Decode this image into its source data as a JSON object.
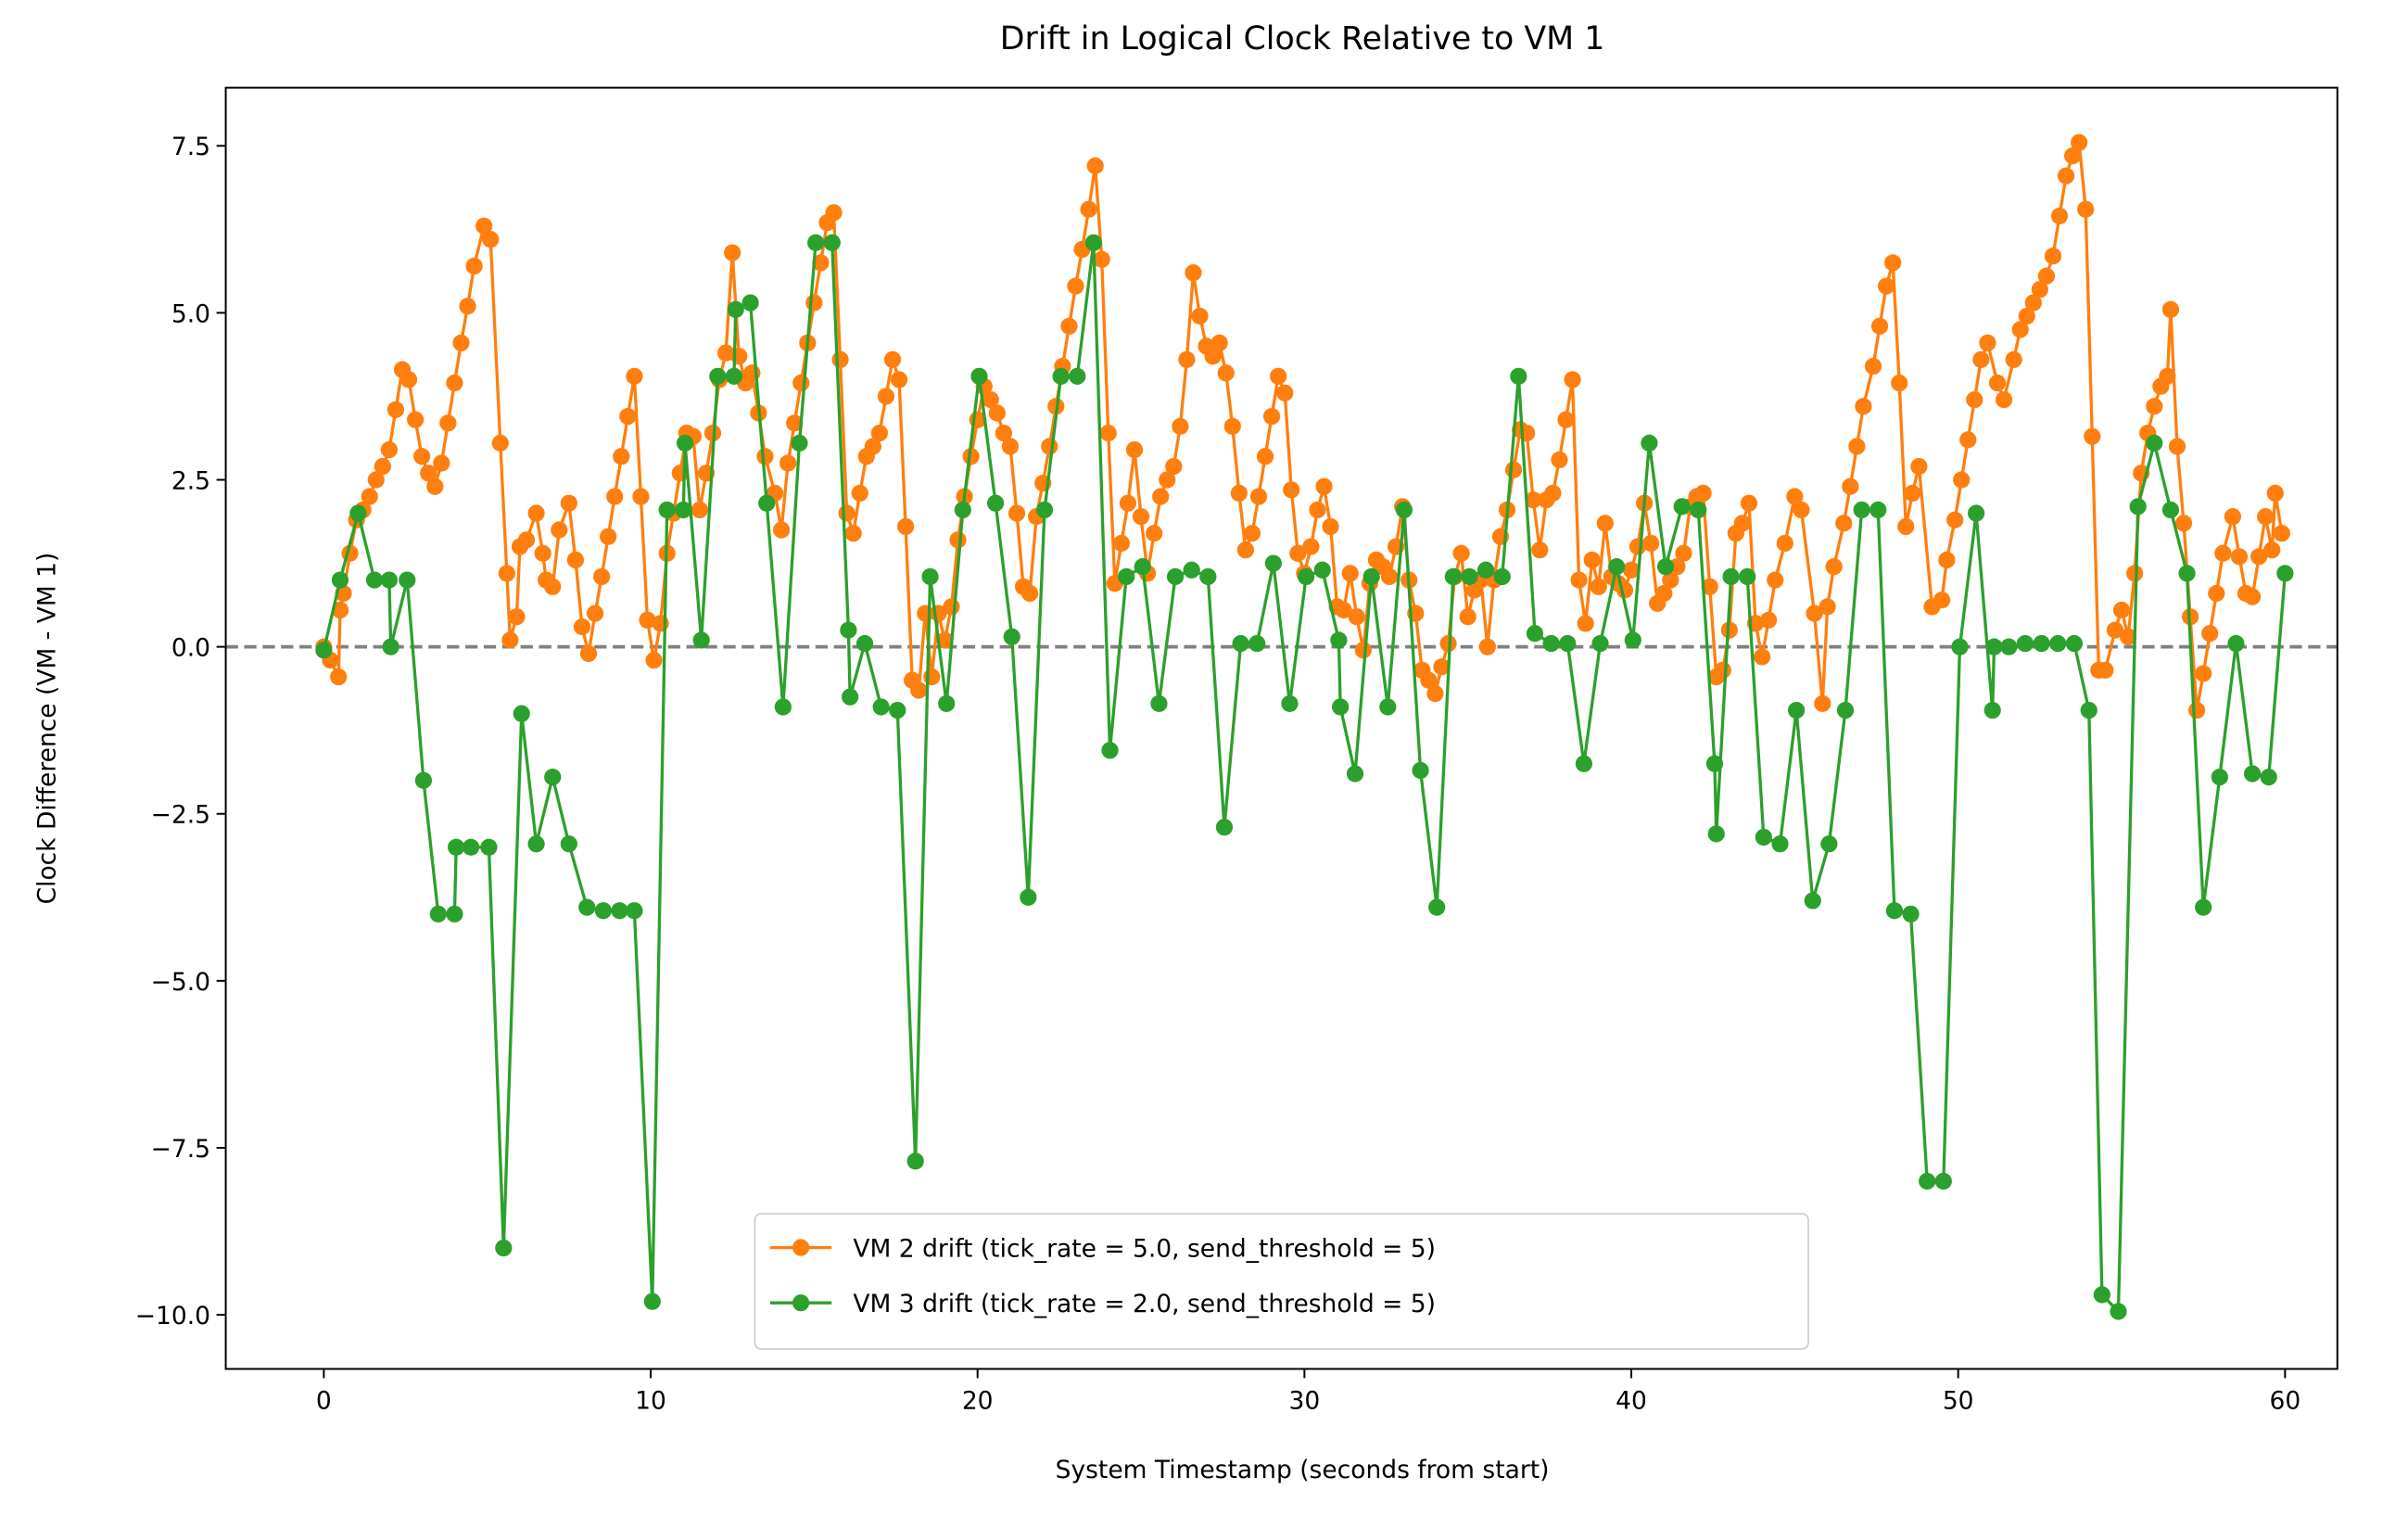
{
  "chart_data": {
    "type": "line",
    "title": "Drift in Logical Clock Relative to VM 1",
    "xlabel": "System Timestamp (seconds from start)",
    "ylabel": "Clock Difference (VM - VM 1)",
    "xlim": [
      -3,
      61.6
    ],
    "ylim": [
      -10.81,
      8.37
    ],
    "xticks": [
      0,
      10,
      20,
      30,
      40,
      50,
      60
    ],
    "yticks": [
      {
        "value": -10,
        "label": "−10.0"
      },
      {
        "value": -7.5,
        "label": "−7.5"
      },
      {
        "value": -5,
        "label": "−5.0"
      },
      {
        "value": -2.5,
        "label": "−2.5"
      },
      {
        "value": 0,
        "label": "0.0"
      },
      2.5,
      {
        "value": 5,
        "label": "5.0"
      },
      7.5
    ],
    "grid": false,
    "legend": "lower center",
    "reference_line": {
      "y": 0,
      "color": "#808080",
      "style": "dashed"
    },
    "series": [
      {
        "name": "VM 2 drift (tick_rate = 5.0, send_threshold = 5)",
        "color": "#ff7f0e",
        "x": [
          0,
          0.2,
          0.45,
          0.5,
          0.6,
          0.8,
          1.0,
          1.2,
          1.4,
          1.6,
          1.8,
          2.0,
          2.2,
          2.4,
          2.6,
          2.8,
          3.0,
          3.2,
          3.4,
          3.6,
          3.8,
          4.0,
          4.2,
          4.4,
          4.6,
          4.9,
          5.1,
          5.4,
          5.6,
          5.7,
          5.9,
          6.0,
          6.2,
          6.5,
          6.7,
          6.8,
          7.0,
          7.2,
          7.5,
          7.7,
          7.9,
          8.1,
          8.3,
          8.5,
          8.7,
          8.9,
          9.1,
          9.3,
          9.5,
          9.7,
          9.9,
          10.1,
          10.3,
          10.5,
          10.7,
          10.9,
          11.1,
          11.3,
          11.5,
          11.7,
          11.9,
          12.1,
          12.3,
          12.5,
          12.7,
          12.9,
          13.1,
          13.3,
          13.5,
          13.8,
          14.0,
          14.2,
          14.4,
          14.6,
          14.8,
          15.0,
          15.2,
          15.4,
          15.6,
          15.8,
          16.0,
          16.2,
          16.4,
          16.6,
          16.8,
          17.0,
          17.2,
          17.4,
          17.6,
          17.8,
          18.0,
          18.2,
          18.4,
          18.6,
          18.8,
          19.0,
          19.2,
          19.4,
          19.6,
          19.8,
          20.0,
          20.2,
          20.4,
          20.6,
          20.8,
          21.0,
          21.2,
          21.4,
          21.6,
          21.8,
          22.0,
          22.2,
          22.4,
          22.6,
          22.8,
          23.0,
          23.2,
          23.4,
          23.6,
          23.8,
          24.0,
          24.2,
          24.4,
          24.6,
          24.8,
          25.0,
          25.2,
          25.4,
          25.6,
          25.8,
          26.0,
          26.2,
          26.4,
          26.6,
          26.8,
          27.0,
          27.2,
          27.4,
          27.6,
          27.8,
          28.0,
          28.2,
          28.4,
          28.6,
          28.8,
          29.0,
          29.2,
          29.4,
          29.6,
          29.8,
          30.0,
          30.2,
          30.4,
          30.6,
          30.8,
          31.0,
          31.2,
          31.4,
          31.6,
          31.8,
          32.0,
          32.2,
          32.4,
          32.6,
          32.8,
          33.0,
          33.2,
          33.4,
          33.6,
          33.8,
          34.0,
          34.2,
          34.4,
          34.6,
          34.8,
          35.0,
          35.2,
          35.4,
          35.6,
          35.8,
          36.0,
          36.2,
          36.4,
          36.6,
          36.8,
          37.0,
          37.2,
          37.4,
          37.6,
          37.8,
          38.0,
          38.2,
          38.4,
          38.6,
          38.8,
          39.0,
          39.2,
          39.4,
          39.6,
          39.8,
          40.0,
          40.2,
          40.4,
          40.6,
          40.8,
          41.0,
          41.2,
          41.4,
          41.6,
          41.8,
          42.0,
          42.2,
          42.4,
          42.6,
          42.8,
          43.0,
          43.2,
          43.4,
          43.6,
          43.8,
          44.0,
          44.2,
          44.4,
          44.7,
          45.0,
          45.2,
          45.6,
          45.85,
          46.0,
          46.2,
          46.5,
          46.7,
          46.9,
          47.1,
          47.4,
          47.6,
          47.8,
          48.0,
          48.2,
          48.4,
          48.6,
          48.8,
          49.2,
          49.5,
          49.65,
          49.9,
          50.1,
          50.3,
          50.5,
          50.7,
          50.9,
          51.2,
          51.4,
          51.7,
          51.9,
          52.1,
          52.3,
          52.5,
          52.7,
          52.9,
          53.1,
          53.3,
          53.5,
          53.7,
          53.9,
          54.1,
          54.3,
          54.5,
          54.8,
          55.0,
          55.2,
          55.4,
          55.6,
          55.8,
          56.0,
          56.2,
          56.4,
          56.5,
          56.7,
          56.9,
          57.1,
          57.3,
          57.5,
          57.7,
          57.9,
          58.1,
          58.4,
          58.6,
          58.8,
          59.0,
          59.2,
          59.4,
          59.6,
          59.7,
          59.9
        ],
        "values": [
          0,
          -0.2,
          -0.45,
          0.55,
          0.8,
          1.4,
          1.9,
          2.05,
          2.25,
          2.5,
          2.7,
          2.95,
          3.55,
          4.15,
          4.0,
          3.4,
          2.85,
          2.6,
          2.4,
          2.75,
          3.35,
          3.95,
          4.55,
          5.1,
          5.7,
          6.3,
          6.1,
          3.05,
          1.1,
          0.1,
          0.45,
          1.5,
          1.6,
          2.0,
          1.4,
          1.0,
          0.9,
          1.75,
          2.15,
          1.3,
          0.3,
          -0.1,
          0.5,
          1.05,
          1.65,
          2.25,
          2.85,
          3.45,
          4.05,
          2.25,
          0.4,
          -0.2,
          0.35,
          1.4,
          2.0,
          2.6,
          3.2,
          3.15,
          2.05,
          2.6,
          3.2,
          4.0,
          4.4,
          5.9,
          4.35,
          3.95,
          4.1,
          3.5,
          2.85,
          2.3,
          1.75,
          2.75,
          3.35,
          3.95,
          4.55,
          5.15,
          5.75,
          6.35,
          6.5,
          4.3,
          2.0,
          1.7,
          2.3,
          2.85,
          3.0,
          3.2,
          3.75,
          4.3,
          4.0,
          1.8,
          -0.5,
          -0.65,
          0.5,
          -0.45,
          0.5,
          0.1,
          0.6,
          1.6,
          2.25,
          2.85,
          3.4,
          3.9,
          3.7,
          3.5,
          3.2,
          3.0,
          2.0,
          0.9,
          0.8,
          1.95,
          2.45,
          3.0,
          3.6,
          4.2,
          4.8,
          5.4,
          5.95,
          6.55,
          7.2,
          5.8,
          3.2,
          0.95,
          1.55,
          2.15,
          2.95,
          1.95,
          1.1,
          1.7,
          2.25,
          2.5,
          2.7,
          3.3,
          4.3,
          5.6,
          4.95,
          4.5,
          4.35,
          4.55,
          4.1,
          3.3,
          2.3,
          1.45,
          1.7,
          2.25,
          2.85,
          3.45,
          4.05,
          3.8,
          2.35,
          1.4,
          1.1,
          1.5,
          2.05,
          2.4,
          1.8,
          0.6,
          0.55,
          1.1,
          0.45,
          -0.05,
          0.95,
          1.3,
          1.2,
          1.05,
          1.5,
          2.1,
          1.0,
          0.5,
          -0.35,
          -0.5,
          -0.7,
          -0.3,
          0.05,
          1.05,
          1.4,
          0.45,
          0.85,
          1.0,
          0.0,
          1.0,
          1.65,
          2.05,
          2.65,
          3.25,
          3.2,
          2.2,
          1.45,
          2.2,
          2.3,
          2.8,
          3.4,
          4.0,
          1.0,
          0.35,
          1.3,
          0.9,
          1.85,
          1.05,
          0.95,
          0.85,
          1.15,
          1.5,
          2.15,
          1.55,
          0.65,
          0.8,
          1.0,
          1.2,
          1.4,
          2.1,
          2.25,
          2.3,
          0.9,
          -0.45,
          -0.35,
          0.25,
          1.7,
          1.85,
          2.15,
          0.35,
          -0.15,
          0.4,
          1.0,
          1.55,
          2.25,
          2.05,
          0.5,
          -0.85,
          0.6,
          1.2,
          1.85,
          2.4,
          3.0,
          3.6,
          4.2,
          4.8,
          5.4,
          5.75,
          3.95,
          1.8,
          2.3,
          2.7,
          0.6,
          0.7,
          1.3,
          1.9,
          2.5,
          3.1,
          3.7,
          4.3,
          4.55,
          3.95,
          3.7,
          4.3,
          4.75,
          4.95,
          5.15,
          5.35,
          5.55,
          5.85,
          6.45,
          7.05,
          7.35,
          7.55,
          6.55,
          3.15,
          -0.35,
          -0.35,
          0.25,
          0.55,
          0.15,
          1.1,
          2.6,
          3.2,
          3.6,
          3.9,
          4.05,
          5.05,
          3.0,
          1.85,
          0.45,
          -0.95,
          -0.4,
          0.2,
          0.8,
          1.4,
          1.95,
          1.35,
          0.8,
          0.75,
          1.35,
          1.95,
          1.45,
          2.3,
          1.7
        ]
      },
      {
        "name": "VM 3 drift (tick_rate = 2.0, send_threshold = 5)",
        "color": "#2ca02c",
        "x": [
          0,
          0.5,
          1.05,
          1.55,
          2.0,
          2.05,
          2.55,
          3.05,
          3.5,
          4.0,
          4.05,
          4.5,
          5.05,
          5.5,
          6.05,
          6.5,
          7.0,
          7.5,
          8.05,
          8.55,
          9.05,
          9.5,
          10.05,
          10.5,
          11.0,
          11.05,
          11.55,
          12.05,
          12.55,
          12.6,
          13.05,
          13.55,
          14.05,
          14.55,
          15.05,
          15.55,
          16.05,
          16.1,
          16.55,
          17.05,
          17.55,
          18.1,
          18.55,
          19.05,
          19.55,
          20.05,
          20.55,
          21.05,
          21.55,
          22.05,
          22.55,
          23.05,
          23.55,
          24.05,
          24.55,
          25.05,
          25.55,
          26.05,
          26.55,
          27.05,
          27.55,
          28.05,
          28.55,
          29.05,
          29.55,
          30.05,
          30.55,
          31.05,
          31.1,
          31.55,
          32.05,
          32.55,
          33.05,
          33.55,
          34.05,
          34.55,
          35.05,
          35.55,
          36.05,
          36.55,
          37.05,
          37.55,
          38.05,
          38.55,
          39.05,
          39.55,
          40.05,
          40.55,
          41.05,
          41.55,
          42.05,
          42.55,
          42.6,
          43.05,
          43.55,
          44.05,
          44.55,
          45.05,
          45.55,
          46.05,
          46.55,
          47.05,
          47.55,
          48.05,
          48.55,
          49.05,
          49.55,
          50.05,
          50.55,
          51.05,
          51.1,
          51.55,
          52.05,
          52.55,
          53.05,
          53.55,
          54.0,
          54.4,
          54.9,
          55.5,
          56.0,
          56.5,
          57.0,
          57.5,
          58.0,
          58.5,
          59.0,
          59.5,
          60.0
        ],
        "values": [
          -0.05,
          1.0,
          2.0,
          1.0,
          1.0,
          0.0,
          1.0,
          -2.0,
          -4.0,
          -4.0,
          -3.0,
          -3.0,
          -3.0,
          -9.0,
          -1.0,
          -2.95,
          -1.95,
          -2.95,
          -3.9,
          -3.95,
          -3.95,
          -3.95,
          -9.8,
          2.05,
          2.05,
          3.05,
          0.1,
          4.05,
          4.05,
          5.05,
          5.15,
          2.15,
          -0.9,
          3.05,
          6.05,
          6.05,
          0.25,
          -0.75,
          0.05,
          -0.9,
          -0.95,
          -7.7,
          1.05,
          -0.85,
          2.05,
          4.05,
          2.15,
          0.15,
          -3.75,
          2.05,
          4.05,
          4.05,
          6.05,
          -1.55,
          1.05,
          1.2,
          -0.85,
          1.05,
          1.15,
          1.05,
          -2.7,
          0.05,
          0.05,
          1.25,
          -0.85,
          1.05,
          1.15,
          0.1,
          -0.9,
          -1.9,
          1.05,
          -0.9,
          2.05,
          -1.85,
          -3.9,
          1.05,
          1.05,
          1.15,
          1.05,
          4.05,
          0.2,
          0.05,
          0.05,
          -1.75,
          0.05,
          1.2,
          0.1,
          3.05,
          1.2,
          2.1,
          2.05,
          -1.75,
          -2.8,
          1.05,
          1.05,
          -2.85,
          -2.95,
          -0.95,
          -3.8,
          -2.95,
          -0.95,
          2.05,
          2.05,
          -3.95,
          -4.0,
          -8.0,
          -8.0,
          0.0,
          2.0,
          -0.95,
          0.0,
          0.0,
          0.05,
          0.05,
          0.05,
          0.05,
          -0.95,
          -9.7,
          -9.95,
          2.1,
          3.05,
          2.05,
          1.1,
          -3.9,
          -1.95,
          0.05,
          -1.9,
          -1.95,
          1.1
        ]
      }
    ]
  }
}
